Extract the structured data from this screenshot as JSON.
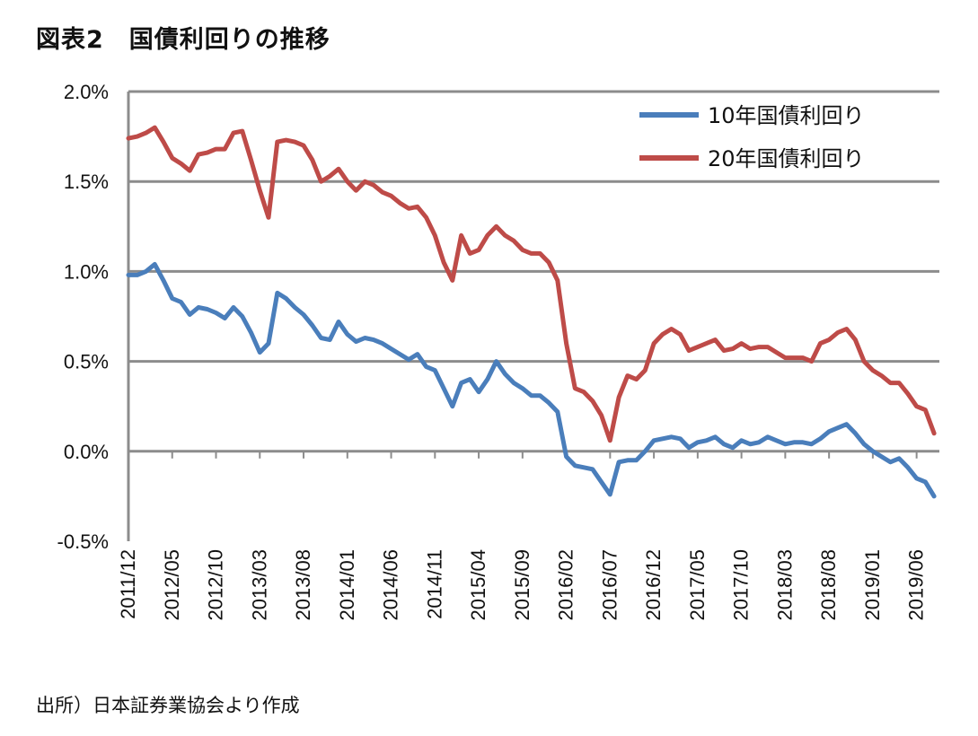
{
  "header": {
    "title": "図表2　国債利回りの推移"
  },
  "footer": {
    "source": "出所）日本証券業協会より作成"
  },
  "chart_data": {
    "type": "line",
    "title": "図表2　国債利回りの推移",
    "xlabel": "",
    "ylabel": "",
    "x_start": "2011/12",
    "x_end": "2019/08",
    "ylim": [
      -0.5,
      2.0
    ],
    "y_ticks": [
      "2.0%",
      "1.5%",
      "1.0%",
      "0.5%",
      "0.0%",
      "-0.5%"
    ],
    "x_ticks": [
      "2011/12",
      "2012/05",
      "2012/10",
      "2013/03",
      "2013/08",
      "2014/01",
      "2014/06",
      "2014/11",
      "2015/04",
      "2015/09",
      "2016/02",
      "2016/07",
      "2016/12",
      "2017/05",
      "2017/10",
      "2018/03",
      "2018/08",
      "2019/01",
      "2019/06"
    ],
    "grid": true,
    "legend_position": "top-right",
    "series": [
      {
        "name": "10年国債利回り",
        "color": "#4A7EBB",
        "points": [
          [
            "2011/12",
            0.98
          ],
          [
            "2012/01",
            0.98
          ],
          [
            "2012/02",
            1.0
          ],
          [
            "2012/03",
            1.04
          ],
          [
            "2012/04",
            0.95
          ],
          [
            "2012/05",
            0.85
          ],
          [
            "2012/06",
            0.83
          ],
          [
            "2012/07",
            0.76
          ],
          [
            "2012/08",
            0.8
          ],
          [
            "2012/09",
            0.79
          ],
          [
            "2012/10",
            0.77
          ],
          [
            "2012/11",
            0.74
          ],
          [
            "2012/12",
            0.8
          ],
          [
            "2013/01",
            0.75
          ],
          [
            "2013/02",
            0.66
          ],
          [
            "2013/03",
            0.55
          ],
          [
            "2013/04",
            0.6
          ],
          [
            "2013/05",
            0.88
          ],
          [
            "2013/06",
            0.85
          ],
          [
            "2013/07",
            0.8
          ],
          [
            "2013/08",
            0.76
          ],
          [
            "2013/09",
            0.7
          ],
          [
            "2013/10",
            0.63
          ],
          [
            "2013/11",
            0.62
          ],
          [
            "2013/12",
            0.72
          ],
          [
            "2014/01",
            0.65
          ],
          [
            "2014/02",
            0.61
          ],
          [
            "2014/03",
            0.63
          ],
          [
            "2014/04",
            0.62
          ],
          [
            "2014/05",
            0.6
          ],
          [
            "2014/06",
            0.57
          ],
          [
            "2014/07",
            0.54
          ],
          [
            "2014/08",
            0.51
          ],
          [
            "2014/09",
            0.54
          ],
          [
            "2014/10",
            0.47
          ],
          [
            "2014/11",
            0.45
          ],
          [
            "2014/12",
            0.35
          ],
          [
            "2015/01",
            0.25
          ],
          [
            "2015/02",
            0.38
          ],
          [
            "2015/03",
            0.4
          ],
          [
            "2015/04",
            0.33
          ],
          [
            "2015/05",
            0.4
          ],
          [
            "2015/06",
            0.5
          ],
          [
            "2015/07",
            0.43
          ],
          [
            "2015/08",
            0.38
          ],
          [
            "2015/09",
            0.35
          ],
          [
            "2015/10",
            0.31
          ],
          [
            "2015/11",
            0.31
          ],
          [
            "2015/12",
            0.27
          ],
          [
            "2016/01",
            0.22
          ],
          [
            "2016/02",
            -0.03
          ],
          [
            "2016/03",
            -0.08
          ],
          [
            "2016/04",
            -0.09
          ],
          [
            "2016/05",
            -0.1
          ],
          [
            "2016/06",
            -0.17
          ],
          [
            "2016/07",
            -0.24
          ],
          [
            "2016/08",
            -0.06
          ],
          [
            "2016/09",
            -0.05
          ],
          [
            "2016/10",
            -0.05
          ],
          [
            "2016/11",
            0.0
          ],
          [
            "2016/12",
            0.06
          ],
          [
            "2017/01",
            0.07
          ],
          [
            "2017/02",
            0.08
          ],
          [
            "2017/03",
            0.07
          ],
          [
            "2017/04",
            0.02
          ],
          [
            "2017/05",
            0.05
          ],
          [
            "2017/06",
            0.06
          ],
          [
            "2017/07",
            0.08
          ],
          [
            "2017/08",
            0.04
          ],
          [
            "2017/09",
            0.02
          ],
          [
            "2017/10",
            0.06
          ],
          [
            "2017/11",
            0.04
          ],
          [
            "2017/12",
            0.05
          ],
          [
            "2018/01",
            0.08
          ],
          [
            "2018/02",
            0.06
          ],
          [
            "2018/03",
            0.04
          ],
          [
            "2018/04",
            0.05
          ],
          [
            "2018/05",
            0.05
          ],
          [
            "2018/06",
            0.04
          ],
          [
            "2018/07",
            0.07
          ],
          [
            "2018/08",
            0.11
          ],
          [
            "2018/09",
            0.13
          ],
          [
            "2018/10",
            0.15
          ],
          [
            "2018/11",
            0.1
          ],
          [
            "2018/12",
            0.04
          ],
          [
            "2019/01",
            0.0
          ],
          [
            "2019/02",
            -0.03
          ],
          [
            "2019/03",
            -0.06
          ],
          [
            "2019/04",
            -0.04
          ],
          [
            "2019/05",
            -0.09
          ],
          [
            "2019/06",
            -0.15
          ],
          [
            "2019/07",
            -0.17
          ],
          [
            "2019/08",
            -0.25
          ]
        ]
      },
      {
        "name": "20年国債利回り",
        "color": "#BE4B48",
        "points": [
          [
            "2011/12",
            1.74
          ],
          [
            "2012/01",
            1.75
          ],
          [
            "2012/02",
            1.77
          ],
          [
            "2012/03",
            1.8
          ],
          [
            "2012/04",
            1.72
          ],
          [
            "2012/05",
            1.63
          ],
          [
            "2012/06",
            1.6
          ],
          [
            "2012/07",
            1.56
          ],
          [
            "2012/08",
            1.65
          ],
          [
            "2012/09",
            1.66
          ],
          [
            "2012/10",
            1.68
          ],
          [
            "2012/11",
            1.68
          ],
          [
            "2012/12",
            1.77
          ],
          [
            "2013/01",
            1.78
          ],
          [
            "2013/02",
            1.62
          ],
          [
            "2013/03",
            1.45
          ],
          [
            "2013/04",
            1.3
          ],
          [
            "2013/05",
            1.72
          ],
          [
            "2013/06",
            1.73
          ],
          [
            "2013/07",
            1.72
          ],
          [
            "2013/08",
            1.7
          ],
          [
            "2013/09",
            1.62
          ],
          [
            "2013/10",
            1.5
          ],
          [
            "2013/11",
            1.53
          ],
          [
            "2013/12",
            1.57
          ],
          [
            "2014/01",
            1.5
          ],
          [
            "2014/02",
            1.45
          ],
          [
            "2014/03",
            1.5
          ],
          [
            "2014/04",
            1.48
          ],
          [
            "2014/05",
            1.44
          ],
          [
            "2014/06",
            1.42
          ],
          [
            "2014/07",
            1.38
          ],
          [
            "2014/08",
            1.35
          ],
          [
            "2014/09",
            1.36
          ],
          [
            "2014/10",
            1.3
          ],
          [
            "2014/11",
            1.2
          ],
          [
            "2014/12",
            1.05
          ],
          [
            "2015/01",
            0.95
          ],
          [
            "2015/02",
            1.2
          ],
          [
            "2015/03",
            1.1
          ],
          [
            "2015/04",
            1.12
          ],
          [
            "2015/05",
            1.2
          ],
          [
            "2015/06",
            1.25
          ],
          [
            "2015/07",
            1.2
          ],
          [
            "2015/08",
            1.17
          ],
          [
            "2015/09",
            1.12
          ],
          [
            "2015/10",
            1.1
          ],
          [
            "2015/11",
            1.1
          ],
          [
            "2015/12",
            1.05
          ],
          [
            "2016/01",
            0.95
          ],
          [
            "2016/02",
            0.6
          ],
          [
            "2016/03",
            0.35
          ],
          [
            "2016/04",
            0.33
          ],
          [
            "2016/05",
            0.28
          ],
          [
            "2016/06",
            0.2
          ],
          [
            "2016/07",
            0.06
          ],
          [
            "2016/08",
            0.3
          ],
          [
            "2016/09",
            0.42
          ],
          [
            "2016/10",
            0.4
          ],
          [
            "2016/11",
            0.45
          ],
          [
            "2016/12",
            0.6
          ],
          [
            "2017/01",
            0.65
          ],
          [
            "2017/02",
            0.68
          ],
          [
            "2017/03",
            0.65
          ],
          [
            "2017/04",
            0.56
          ],
          [
            "2017/05",
            0.58
          ],
          [
            "2017/06",
            0.6
          ],
          [
            "2017/07",
            0.62
          ],
          [
            "2017/08",
            0.56
          ],
          [
            "2017/09",
            0.57
          ],
          [
            "2017/10",
            0.6
          ],
          [
            "2017/11",
            0.57
          ],
          [
            "2017/12",
            0.58
          ],
          [
            "2018/01",
            0.58
          ],
          [
            "2018/02",
            0.55
          ],
          [
            "2018/03",
            0.52
          ],
          [
            "2018/04",
            0.52
          ],
          [
            "2018/05",
            0.52
          ],
          [
            "2018/06",
            0.5
          ],
          [
            "2018/07",
            0.6
          ],
          [
            "2018/08",
            0.62
          ],
          [
            "2018/09",
            0.66
          ],
          [
            "2018/10",
            0.68
          ],
          [
            "2018/11",
            0.62
          ],
          [
            "2018/12",
            0.5
          ],
          [
            "2019/01",
            0.45
          ],
          [
            "2019/02",
            0.42
          ],
          [
            "2019/03",
            0.38
          ],
          [
            "2019/04",
            0.38
          ],
          [
            "2019/05",
            0.32
          ],
          [
            "2019/06",
            0.25
          ],
          [
            "2019/07",
            0.23
          ],
          [
            "2019/08",
            0.1
          ]
        ]
      }
    ]
  }
}
